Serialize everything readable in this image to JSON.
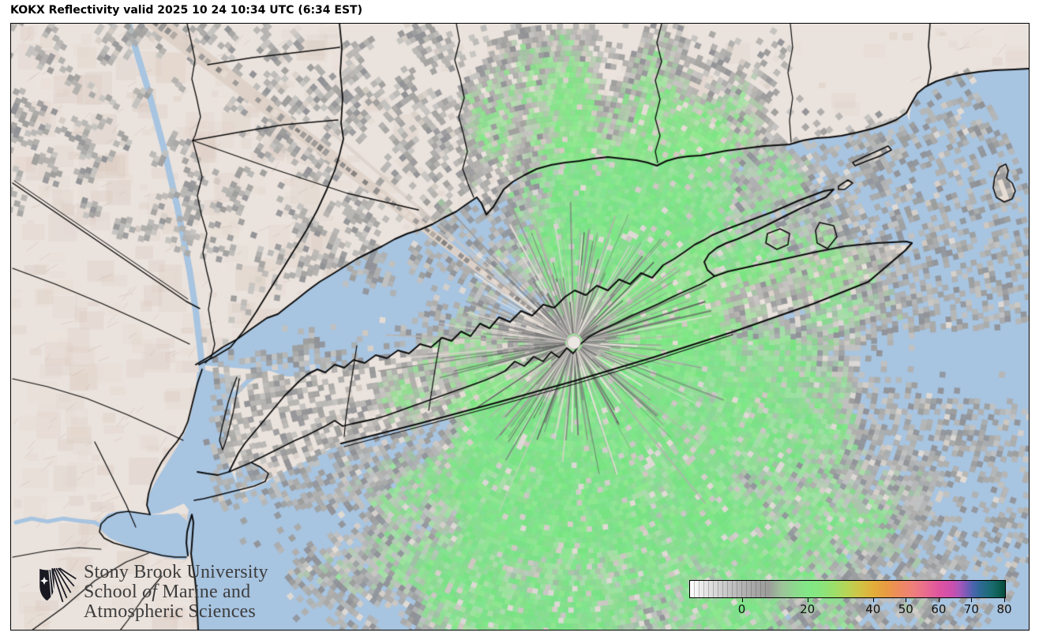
{
  "header": {
    "title": "KOKX Reflectivity valid 2025 10 24 10:34 UTC (6:34 EST)"
  },
  "branding": {
    "line1": "Stony Brook University",
    "line2_pre": "School ",
    "line2_italic": "of",
    "line2_post": " Marine and",
    "line3": "Atmospheric Sciences",
    "shield_icon": "sbu-shield-icon"
  },
  "colorbar": {
    "ticks": [
      0,
      20,
      40,
      50,
      60,
      70,
      80
    ],
    "domain_min": -16,
    "domain_max": 80,
    "stops": [
      {
        "v": -16,
        "c": "#ffffff"
      },
      {
        "v": -12,
        "c": "#e9e9e9"
      },
      {
        "v": -8,
        "c": "#d6d6d6"
      },
      {
        "v": -4,
        "c": "#c4c4c4"
      },
      {
        "v": 0,
        "c": "#b3b3b3"
      },
      {
        "v": 4,
        "c": "#a5a5a5"
      },
      {
        "v": 8,
        "c": "#9c9d9a"
      },
      {
        "v": 12,
        "c": "#9cc39a"
      },
      {
        "v": 16,
        "c": "#8cd98d"
      },
      {
        "v": 20,
        "c": "#81e886"
      },
      {
        "v": 24,
        "c": "#89e47e"
      },
      {
        "v": 28,
        "c": "#9ddf6a"
      },
      {
        "v": 32,
        "c": "#b8d455"
      },
      {
        "v": 36,
        "c": "#d2c244"
      },
      {
        "v": 40,
        "c": "#e3ad3a"
      },
      {
        "v": 44,
        "c": "#e99a43"
      },
      {
        "v": 48,
        "c": "#ee8a60"
      },
      {
        "v": 52,
        "c": "#ee7f7c"
      },
      {
        "v": 56,
        "c": "#e96b90"
      },
      {
        "v": 60,
        "c": "#de54a0"
      },
      {
        "v": 64,
        "c": "#cb4fae"
      },
      {
        "v": 66,
        "c": "#a957b9"
      },
      {
        "v": 68,
        "c": "#8059b9"
      },
      {
        "v": 70,
        "c": "#4f63af"
      },
      {
        "v": 72,
        "c": "#33689b"
      },
      {
        "v": 74,
        "c": "#246b84"
      },
      {
        "v": 76,
        "c": "#196b6e"
      },
      {
        "v": 78,
        "c": "#0f5f55"
      },
      {
        "v": 80,
        "c": "#064a3c"
      }
    ]
  },
  "map": {
    "water_color": "#a7c4e1",
    "terrain_color": "#eae2dc",
    "terrain_shade": "#d0b9ab",
    "echo_green_bright": "#7ce883",
    "echo_green": "#8ede8f",
    "echo_gray": "#abaaa8",
    "ocean_speckle": "#8f9dad",
    "boundary_color": "#0b0b0b",
    "radar_marker_color": "#ece7e2",
    "blockage_color": "#ddd1c7"
  }
}
